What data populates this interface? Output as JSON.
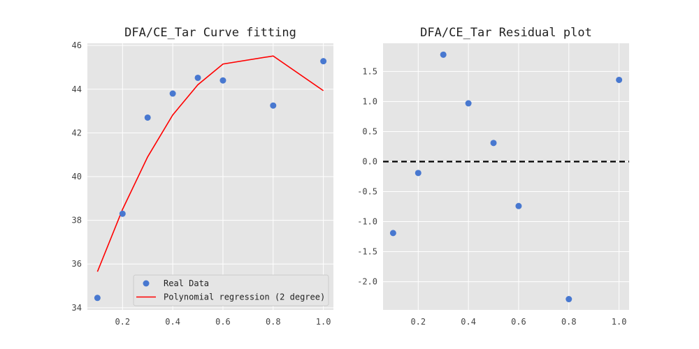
{
  "chart_data": [
    {
      "type": "scatter",
      "title": "DFA/CE_Tar Curve fitting",
      "xlabel": "",
      "ylabel": "",
      "xlim": [
        0.06,
        1.04
      ],
      "ylim": [
        33.9,
        46.1
      ],
      "xticks": [
        0.2,
        0.4,
        0.6,
        0.8,
        1.0
      ],
      "xtick_labels": [
        "0.2",
        "0.4",
        "0.6",
        "0.8",
        "1.0"
      ],
      "yticks": [
        34,
        36,
        38,
        40,
        42,
        44,
        46
      ],
      "ytick_labels": [
        "34",
        "36",
        "38",
        "40",
        "42",
        "44",
        "46"
      ],
      "grid": true,
      "legend": "lower-right",
      "series": [
        {
          "name": "Real Data",
          "kind": "scatter",
          "color": "#4878d0",
          "x": [
            0.1,
            0.2,
            0.3,
            0.4,
            0.5,
            0.6,
            0.8,
            1.0
          ],
          "y": [
            34.45,
            38.3,
            42.7,
            43.8,
            44.52,
            44.4,
            43.25,
            45.28
          ]
        },
        {
          "name": "Polynomial regression (2 degree)",
          "kind": "line",
          "color": "#ff0000",
          "x": [
            0.1,
            0.2,
            0.3,
            0.4,
            0.5,
            0.6,
            0.8,
            1.0
          ],
          "y": [
            35.65,
            38.5,
            40.9,
            42.82,
            44.2,
            45.15,
            45.52,
            43.93
          ]
        }
      ]
    },
    {
      "type": "scatter",
      "title": "DFA/CE_Tar Residual plot",
      "xlabel": "",
      "ylabel": "",
      "xlim": [
        0.06,
        1.04
      ],
      "ylim": [
        -2.47,
        1.97
      ],
      "xticks": [
        0.2,
        0.4,
        0.6,
        0.8,
        1.0
      ],
      "xtick_labels": [
        "0.2",
        "0.4",
        "0.6",
        "0.8",
        "1.0"
      ],
      "yticks": [
        -2.0,
        -1.5,
        -1.0,
        -0.5,
        0.0,
        0.5,
        1.0,
        1.5
      ],
      "ytick_labels": [
        "-2.0",
        "-1.5",
        "-1.0",
        "-0.5",
        "0.0",
        "0.5",
        "1.0",
        "1.5"
      ],
      "grid": true,
      "reference_line": {
        "y": 0,
        "color": "#000000",
        "style": "dashed"
      },
      "series": [
        {
          "kind": "scatter",
          "color": "#4878d0",
          "x": [
            0.1,
            0.2,
            0.3,
            0.4,
            0.5,
            0.6,
            0.8,
            1.0
          ],
          "y": [
            -1.19,
            -0.19,
            1.78,
            0.97,
            0.31,
            -0.74,
            -2.29,
            1.36
          ]
        }
      ]
    }
  ]
}
